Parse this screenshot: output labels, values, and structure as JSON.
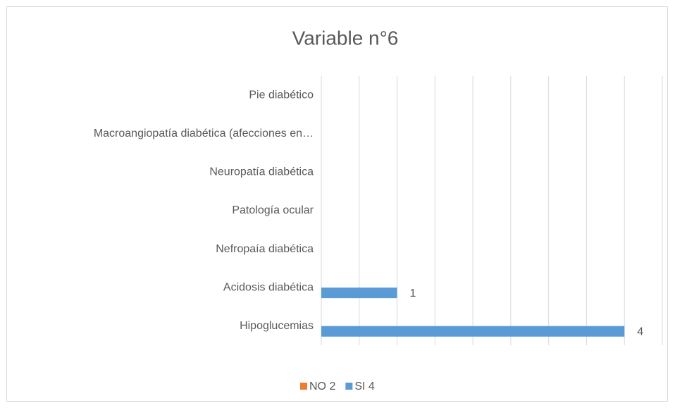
{
  "chart_data": {
    "type": "barh",
    "title": "Variable n°6",
    "categories": [
      "Hipoglucemias",
      "Acidosis diabética",
      "Nefropaía diabética",
      "Patología ocular",
      "Neuropatía diabética",
      "Macroangiopatía diabética (afecciones en…",
      "Pie diabético"
    ],
    "series": [
      {
        "name": "NO 2",
        "color": "#ed7d31",
        "values": [
          null,
          null,
          null,
          null,
          null,
          null,
          null
        ]
      },
      {
        "name": "SI 4",
        "color": "#5b9bd5",
        "values": [
          4,
          1,
          null,
          null,
          null,
          null,
          null
        ]
      }
    ],
    "xlim": [
      0,
      4.5
    ],
    "xticks": [
      0,
      0.5,
      1,
      1.5,
      2,
      2.5,
      3,
      3.5,
      4,
      4.5
    ],
    "grid": true,
    "legend": "bottom"
  }
}
